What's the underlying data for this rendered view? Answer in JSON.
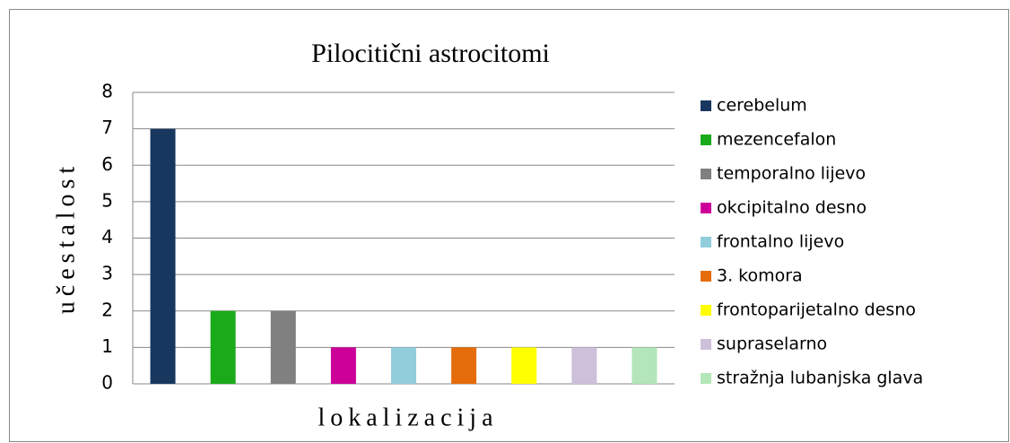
{
  "chart_data": {
    "type": "bar",
    "title": "Pilocitični astrocitomi",
    "x_label": "lokalizacija",
    "y_label": "učestalost",
    "categories": [
      "cerebelum",
      "mezencefalon",
      "temporalno lijevo",
      "okcipitalno desno",
      "frontalno lijevo",
      "3. komora",
      "frontoparijetalno desno",
      "supraselarno",
      "stražnja lubanjska glava"
    ],
    "values": [
      7,
      2,
      2,
      1,
      1,
      1,
      1,
      1,
      1
    ],
    "colors": [
      "#17375e",
      "#1aaa1a",
      "#808080",
      "#cc0099",
      "#92cddc",
      "#e46c0a",
      "#ffff00",
      "#ccc0da",
      "#b3e6b8"
    ],
    "ylim": [
      0,
      8
    ],
    "yticks": [
      0,
      1,
      2,
      3,
      4,
      5,
      6,
      7,
      8
    ],
    "grid": true,
    "legend": "right"
  }
}
